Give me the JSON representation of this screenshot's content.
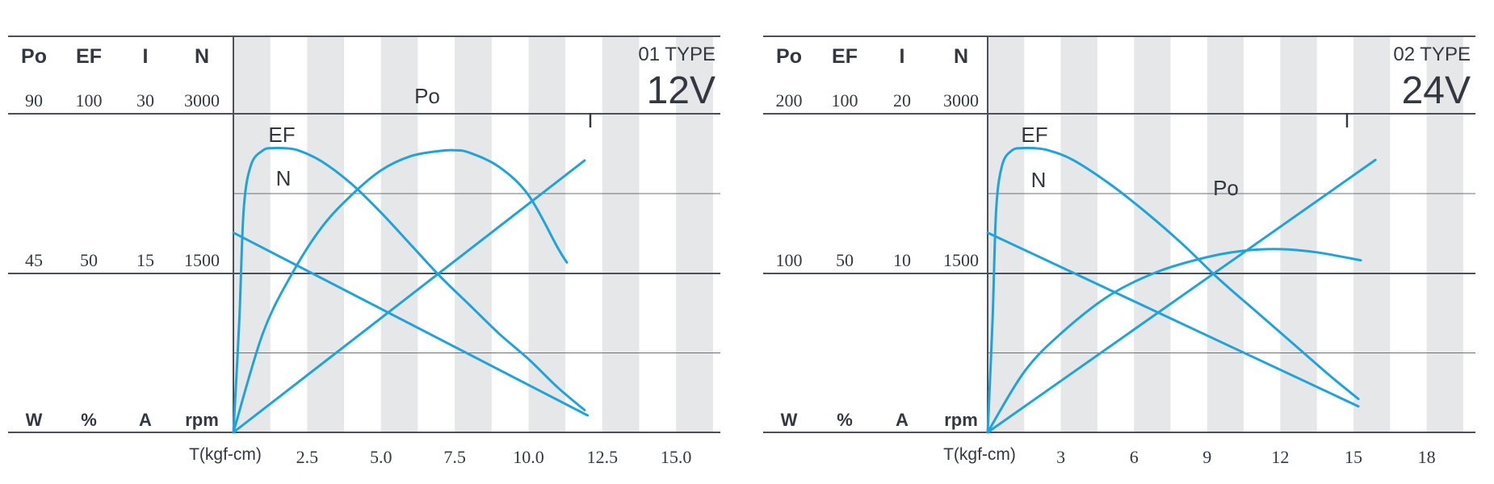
{
  "chart_data": [
    {
      "type": "line",
      "title": "01 TYPE",
      "subtitle": "12V",
      "xlabel": "T(kgf-cm)",
      "xlim": [
        0,
        16.5
      ],
      "xticks": [
        "2.5",
        "5.0",
        "7.5",
        "10.0",
        "12.5",
        "15.0"
      ],
      "xtick_values": [
        2.5,
        5.0,
        7.5,
        10.0,
        12.5,
        15.0
      ],
      "grid": "vertical gray bands",
      "axes": [
        {
          "name": "Po",
          "unit": "W",
          "max": "90",
          "mid": "45",
          "max_value": 90
        },
        {
          "name": "EF",
          "unit": "%",
          "max": "100",
          "mid": "50",
          "max_value": 100
        },
        {
          "name": "I",
          "unit": "A",
          "max": "30",
          "mid": "15",
          "max_value": 30
        },
        {
          "name": "N",
          "unit": "rpm",
          "max": "3000",
          "mid": "1500",
          "max_value": 3000
        }
      ],
      "series": [
        {
          "name": "Po",
          "axis": 0,
          "x": [
            0,
            1,
            2,
            3,
            4,
            5,
            6,
            7,
            7.5,
            8,
            9,
            10,
            11,
            11.3
          ],
          "y": [
            0,
            28,
            45,
            58,
            67,
            74,
            78,
            79.5,
            79.7,
            79,
            75,
            67,
            52,
            48
          ]
        },
        {
          "name": "EF",
          "axis": 1,
          "x": [
            0,
            0.2,
            0.35,
            0.6,
            1.0,
            1.3,
            1.7,
            2.2,
            3,
            4,
            5,
            6,
            7,
            8,
            9,
            10,
            11,
            11.9
          ],
          "y": [
            0,
            35,
            70,
            84,
            88.5,
            89.2,
            89.2,
            88.5,
            85,
            78,
            69,
            59,
            49,
            40,
            31,
            23,
            14,
            7
          ]
        },
        {
          "name": "I",
          "axis": 2,
          "x": [
            0,
            11.9
          ],
          "y": [
            0,
            25.6
          ]
        },
        {
          "name": "N",
          "axis": 3,
          "x": [
            0,
            12.0
          ],
          "y": [
            1880,
            160
          ]
        }
      ]
    },
    {
      "type": "line",
      "title": "02 TYPE",
      "subtitle": "24V",
      "xlabel": "T(kgf-cm)",
      "xlim": [
        0,
        20
      ],
      "xticks": [
        "3",
        "6",
        "9",
        "12",
        "15",
        "18"
      ],
      "xtick_values": [
        3,
        6,
        9,
        12,
        15,
        18
      ],
      "grid": "vertical gray bands",
      "axes": [
        {
          "name": "Po",
          "unit": "W",
          "max": "200",
          "mid": "100",
          "max_value": 200
        },
        {
          "name": "EF",
          "unit": "%",
          "max": "100",
          "mid": "50",
          "max_value": 100
        },
        {
          "name": "I",
          "unit": "A",
          "max": "20",
          "mid": "10",
          "max_value": 20
        },
        {
          "name": "N",
          "unit": "rpm",
          "max": "3000",
          "mid": "1500",
          "max_value": 3000
        }
      ],
      "series": [
        {
          "name": "Po",
          "axis": 0,
          "x": [
            0,
            1.5,
            3,
            5,
            7,
            9,
            10.5,
            12,
            13.5,
            15.3
          ],
          "y": [
            0,
            38,
            62,
            86,
            101,
            110,
            114,
            115,
            113,
            108
          ]
        },
        {
          "name": "EF",
          "axis": 1,
          "x": [
            0,
            0.2,
            0.35,
            0.6,
            1.0,
            1.4,
            1.9,
            2.5,
            3.5,
            5,
            6.5,
            8,
            9.5,
            11,
            12.5,
            14,
            15.2
          ],
          "y": [
            0,
            35,
            70,
            84,
            88.5,
            89.2,
            89.2,
            88.5,
            85.5,
            78,
            69,
            59,
            48,
            38,
            28,
            18,
            10.5
          ]
        },
        {
          "name": "I",
          "axis": 2,
          "x": [
            0,
            15.9
          ],
          "y": [
            0,
            17.1
          ]
        },
        {
          "name": "N",
          "axis": 3,
          "x": [
            0,
            15.2
          ],
          "y": [
            1880,
            245
          ]
        }
      ]
    }
  ]
}
